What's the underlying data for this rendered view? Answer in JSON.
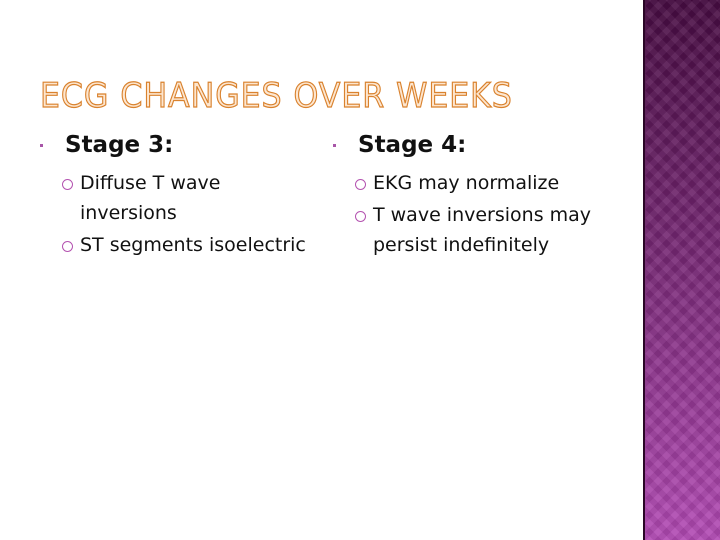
{
  "title": "ECG CHANGES OVER WEEKS",
  "columns": [
    {
      "heading": "Stage 3:",
      "items": [
        "Diffuse T wave inversions",
        "ST segments isoelectric"
      ]
    },
    {
      "heading": "Stage 4:",
      "items": [
        "EKG may normalize",
        "T wave inversions may persist indefinitely"
      ]
    }
  ],
  "colors": {
    "accent": "#b453b0",
    "sidebar_top": "#470c42",
    "sidebar_bottom": "#b24ab4",
    "title_outline": "#d9822e"
  }
}
